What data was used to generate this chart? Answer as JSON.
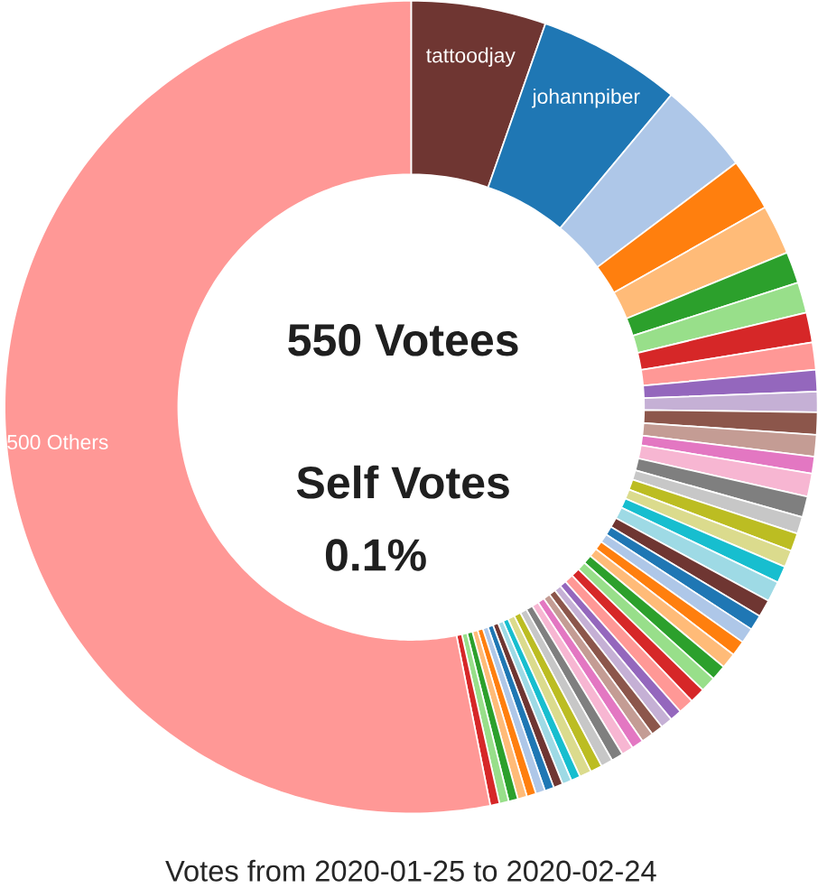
{
  "chart_data": {
    "type": "donut",
    "title": "Votes from 2020-01-25 to 2020-02-24",
    "annotations": [
      "550 Votees",
      "Self Votes",
      "0.1%"
    ],
    "categories": [
      "tattoodjay",
      "johannpiber",
      null,
      null,
      null,
      null,
      null,
      null,
      null,
      null,
      null,
      null,
      null,
      null,
      null,
      null,
      null,
      null,
      null,
      null,
      null,
      null,
      null,
      null,
      null,
      null,
      null,
      null,
      null,
      null,
      null,
      null,
      null,
      null,
      null,
      null,
      null,
      null,
      null,
      null,
      null,
      null,
      null,
      null,
      null,
      null,
      null,
      null,
      null,
      null,
      "500 Others"
    ],
    "values": [
      5.36,
      5.69,
      3.69,
      2.08,
      1.97,
      1.25,
      1.22,
      1.19,
      1.08,
      0.86,
      0.81,
      0.89,
      0.86,
      0.67,
      0.92,
      0.83,
      0.67,
      0.72,
      0.67,
      0.67,
      0.81,
      0.69,
      0.61,
      0.61,
      0.61,
      0.61,
      0.61,
      0.61,
      0.61,
      0.61,
      0.47,
      0.47,
      0.47,
      0.47,
      0.47,
      0.47,
      0.47,
      0.47,
      0.47,
      0.47,
      0.37,
      0.37,
      0.37,
      0.37,
      0.37,
      0.37,
      0.37,
      0.37,
      0.37,
      0.37,
      53.12
    ],
    "colors": [
      "#6f3632",
      "#1f77b4",
      "#aec7e8",
      "#ff7f0e",
      "#ffbb78",
      "#2ca02c",
      "#98df8a",
      "#d62728",
      "#ff9896",
      "#9467bd",
      "#c5b0d5",
      "#8c564b",
      "#c49c94",
      "#e377c2",
      "#f7b6d2",
      "#7f7f7f",
      "#c7c7c7",
      "#bcbd22",
      "#dbdb8d",
      "#17becf",
      "#9edae5",
      "#6f3632",
      "#1f77b4",
      "#aec7e8",
      "#ff7f0e",
      "#ffbb78",
      "#2ca02c",
      "#98df8a",
      "#d62728",
      "#ff9896",
      "#9467bd",
      "#c5b0d5",
      "#8c564b",
      "#c49c94",
      "#e377c2",
      "#f7b6d2",
      "#7f7f7f",
      "#c7c7c7",
      "#bcbd22",
      "#dbdb8d",
      "#17becf",
      "#9edae5",
      "#6f3632",
      "#1f77b4",
      "#aec7e8",
      "#ff7f0e",
      "#ffbb78",
      "#2ca02c",
      "#98df8a",
      "#d62728",
      "#ff9896"
    ]
  }
}
